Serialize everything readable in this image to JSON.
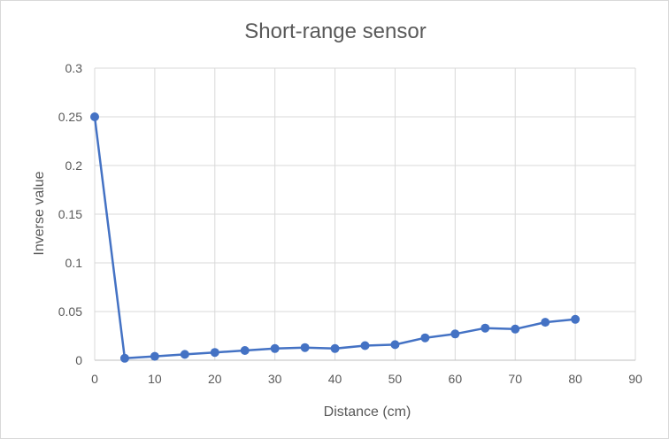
{
  "chart_data": {
    "type": "line",
    "title": "Short-range sensor",
    "xlabel": "Distance (cm)",
    "ylabel": "Inverse value",
    "xlim": [
      0,
      90
    ],
    "ylim": [
      0,
      0.3
    ],
    "xticks": [
      0,
      10,
      20,
      30,
      40,
      50,
      60,
      70,
      80,
      90
    ],
    "yticks": [
      0,
      0.05,
      0.1,
      0.15,
      0.2,
      0.25,
      0.3
    ],
    "ytick_labels": [
      "0",
      "0.05",
      "0.1",
      "0.15",
      "0.2",
      "0.25",
      "0.3"
    ],
    "grid": true,
    "legend": "none",
    "series": [
      {
        "color": "#4472c4",
        "marker": "circle",
        "points": [
          {
            "x": 0,
            "y": 0.25
          },
          {
            "x": 5,
            "y": 0.002
          },
          {
            "x": 10,
            "y": 0.004
          },
          {
            "x": 15,
            "y": 0.006
          },
          {
            "x": 20,
            "y": 0.008
          },
          {
            "x": 25,
            "y": 0.01
          },
          {
            "x": 30,
            "y": 0.012
          },
          {
            "x": 35,
            "y": 0.013
          },
          {
            "x": 40,
            "y": 0.012
          },
          {
            "x": 45,
            "y": 0.015
          },
          {
            "x": 50,
            "y": 0.016
          },
          {
            "x": 55,
            "y": 0.023
          },
          {
            "x": 60,
            "y": 0.027
          },
          {
            "x": 65,
            "y": 0.033
          },
          {
            "x": 70,
            "y": 0.032
          },
          {
            "x": 75,
            "y": 0.039
          },
          {
            "x": 80,
            "y": 0.042
          }
        ]
      }
    ]
  }
}
